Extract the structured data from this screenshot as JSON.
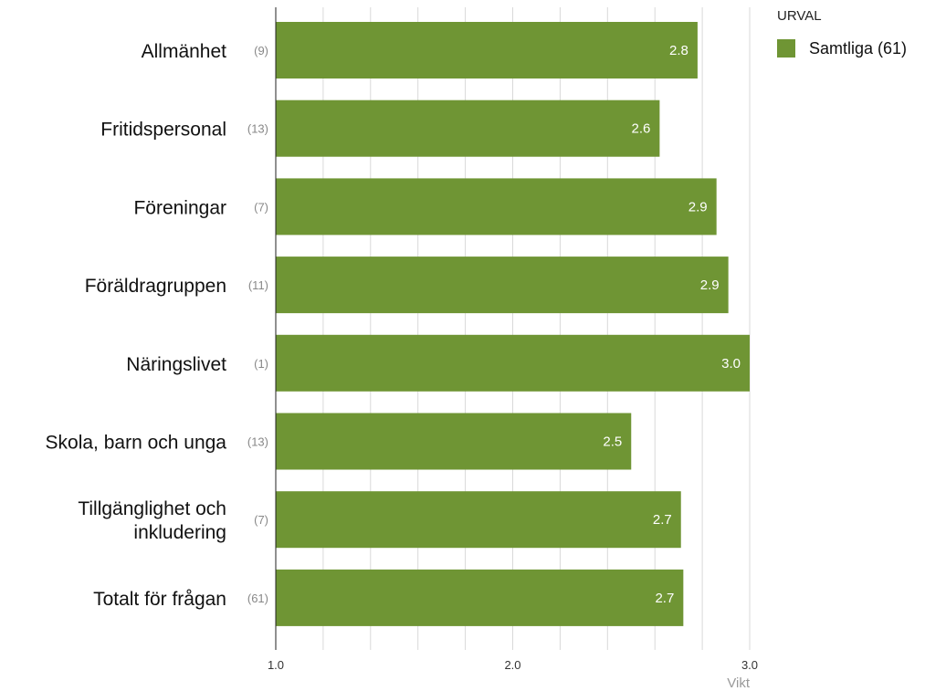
{
  "chart_data": {
    "type": "bar",
    "orientation": "horizontal",
    "categories": [
      "Allmänhet",
      "Fritidspersonal",
      "Föreningar",
      "Föräldragruppen",
      "Näringslivet",
      "Skola, barn och unga",
      "Tillgänglighet och inkludering",
      "Totalt för frågan"
    ],
    "counts": [
      "(9)",
      "(13)",
      "(7)",
      "(11)",
      "(1)",
      "(13)",
      "(7)",
      "(61)"
    ],
    "series": [
      {
        "name": "Samtliga (61)",
        "values": [
          2.78,
          2.62,
          2.86,
          2.91,
          3.0,
          2.5,
          2.71,
          2.72
        ],
        "value_labels": [
          "2.8",
          "2.6",
          "2.9",
          "2.9",
          "3.0",
          "2.5",
          "2.7",
          "2.7"
        ]
      }
    ],
    "xlim": [
      1.0,
      3.0
    ],
    "x_ticks": [
      "1.0",
      "2.0",
      "3.0"
    ],
    "xlabel": "Vikt",
    "legend_title": "URVAL",
    "legend_position": "top-right",
    "grid": true,
    "bar_color": "#6f9534",
    "grid_color": "#d9d9d9"
  }
}
